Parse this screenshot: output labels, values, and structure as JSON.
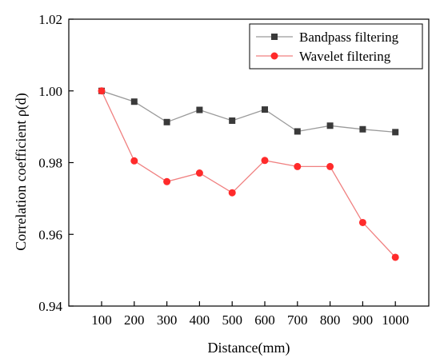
{
  "chart_data": {
    "type": "line",
    "xlabel": "Distance(mm)",
    "ylabel": "Correlation coefficient ρ(d)",
    "x": [
      100,
      200,
      300,
      400,
      500,
      600,
      700,
      800,
      900,
      1000
    ],
    "x_tick_labels": [
      "100",
      "200",
      "300",
      "400",
      "500",
      "600",
      "700",
      "800",
      "900",
      "1000"
    ],
    "ylim": [
      0.94,
      1.02
    ],
    "y_ticks": [
      0.94,
      0.96,
      0.98,
      1.0,
      1.02
    ],
    "y_tick_labels": [
      "0.94",
      "0.96",
      "0.98",
      "1.00",
      "1.02"
    ],
    "legend_position": "top-right",
    "series": [
      {
        "name": "Bandpass filtering",
        "marker": "square",
        "line_color": "#9a9a9a",
        "marker_color": "#3a3a3a",
        "values": [
          1.0,
          0.997,
          0.9913,
          0.9947,
          0.9917,
          0.9948,
          0.9887,
          0.9903,
          0.9893,
          0.9885
        ]
      },
      {
        "name": "Wavelet filtering",
        "marker": "circle",
        "line_color": "#f08080",
        "marker_color": "#ff2a2a",
        "values": [
          1.0,
          0.9805,
          0.9747,
          0.9771,
          0.9716,
          0.9806,
          0.9789,
          0.9789,
          0.9633,
          0.9536
        ]
      }
    ]
  }
}
